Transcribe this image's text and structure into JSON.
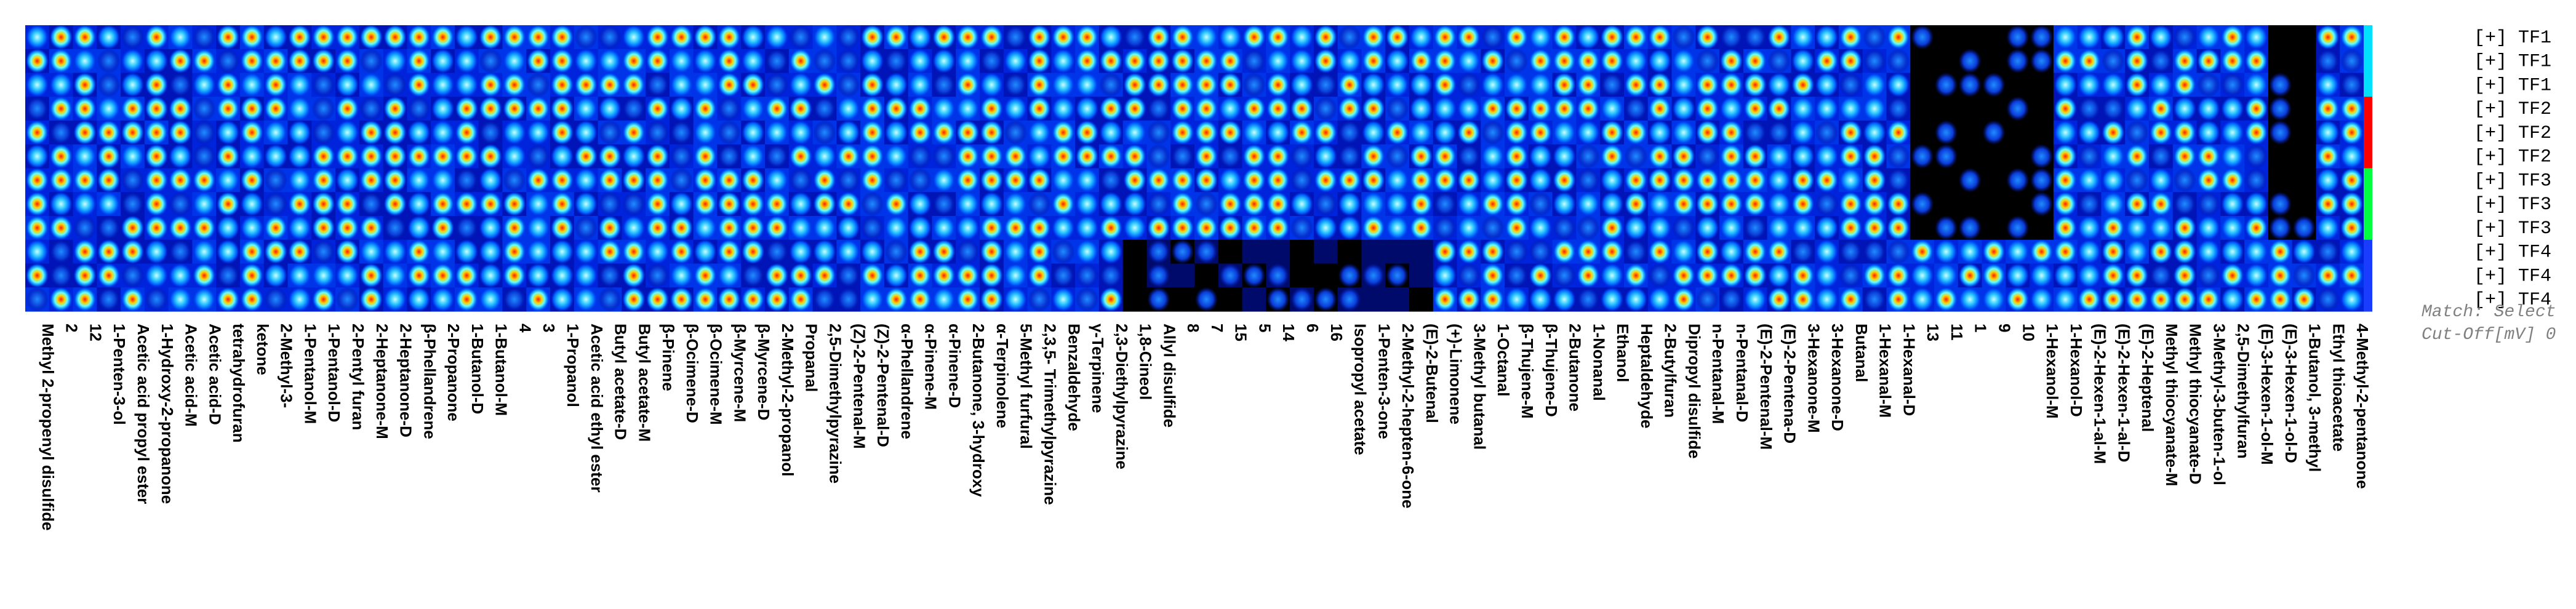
{
  "chart_data": {
    "type": "heatmap",
    "title": "",
    "row_labels": [
      "[+] TF1",
      "[+] TF1",
      "[+] TF1",
      "[+] TF2",
      "[+] TF2",
      "[+] TF2",
      "[+] TF3",
      "[+] TF3",
      "[+] TF3",
      "[+] TF4",
      "[+] TF4",
      "[+] TF4"
    ],
    "column_labels": [
      "Methyl 2-propenyl disulfide",
      "2",
      "12",
      "1-Penten-3-ol",
      "Acetic acid propyl ester",
      "1-Hydroxy-2-propanone",
      "Acetic acid-M",
      "Acetic acid-D",
      "tetrahydrofuran",
      "ketone",
      "2-Methyl-3-",
      "1-Pentanol-M",
      "1-Pentanol-D",
      "2-Pentyl furan",
      "2-Heptanone-M",
      "2-Heptanone-D",
      "β-Phellandrene",
      "2-Propanone",
      "1-Butanol-D",
      "1-Butanol-M",
      "4",
      "3",
      "1-Propanol",
      "Acetic acid ethyl ester",
      "Butyl acetate-D",
      "Butyl acetate-M",
      "β-Pinene",
      "β-Ocimene-D",
      "β-Ocimene-M",
      "β-Myrcene-M",
      "β-Myrcene-D",
      "2-Methyl-2-propanol",
      "Propanal",
      "2,5-Dimethylpyrazine",
      "(Z)-2-Pentenal-M",
      "(Z)-2-Pentenal-D",
      "α-Phellandrene",
      "α-Pinene-M",
      "α-Pinene-D",
      "2-Butanone, 3-hydroxy",
      "α-Terpinolene",
      "5-Methyl furfural",
      "2,3,5- Trimethylpyrazine",
      "Benzaldehyde",
      "γ-Terpinene",
      "2,3-Diethylpyrazine",
      "1,8-Cineol",
      "Allyl disulfide",
      "8",
      "7",
      "15",
      "5",
      "14",
      "6",
      "16",
      "Isopropyl acetate",
      "1-Penten-3-one",
      "2-Methyl-2-hepten-6-one",
      "(E)-2-Butenal",
      "(+)-Limonene",
      "3-Methyl butanal",
      "1-Octanal",
      "β-Thujene-M",
      "β-Thujene-D",
      "2-Butanone",
      "1-Nonanal",
      "Ethanol",
      "Heptaldehyde",
      "2-Butylfuran",
      "Dipropyl disulfide",
      "n-Pentanal-M",
      "n-Pentanal-D",
      "(E)-2-Pentenal-M",
      "(E)-2-Pentena-D",
      "3-Hexanone-M",
      "3-Hexanone-D",
      "Butanal",
      "1-Hexanal-M",
      "1-Hexanal-D",
      "13",
      "11",
      "1",
      "9",
      "10",
      "1-Hexanol-M",
      "1-Hexanol-D",
      "(E)-2-Hexen-1-al-M",
      "(E)-2-Hexen-1-al-D",
      "(E)-2-Heptenal",
      "Methyl thiocyanate-M",
      "Methyl thiocyanate-D",
      "3-Methyl-3-buten-1-ol",
      "2,5-Dimethylfuran",
      "(E)-3-Hexen-1-ol-M",
      "(E)-3-Hexen-1-ol-D",
      "1-Butanol, 3-methyl",
      "Ethyl thioacetate",
      "4-Methyl-2-pentanone"
    ],
    "colorscale": [
      "#000000",
      "#000a6a",
      "#0018d8",
      "#0066ff",
      "#00c8ff",
      "#7effff",
      "#ffff00",
      "#ff8000",
      "#ff0000"
    ],
    "group_colors": [
      "#00e0ff",
      "#ff0000",
      "#00ff40",
      "#1a3cff"
    ],
    "footer_lines": [
      "Match: Select",
      "Cut-Off[mV] 0"
    ],
    "grid": false,
    "legend": "none"
  }
}
